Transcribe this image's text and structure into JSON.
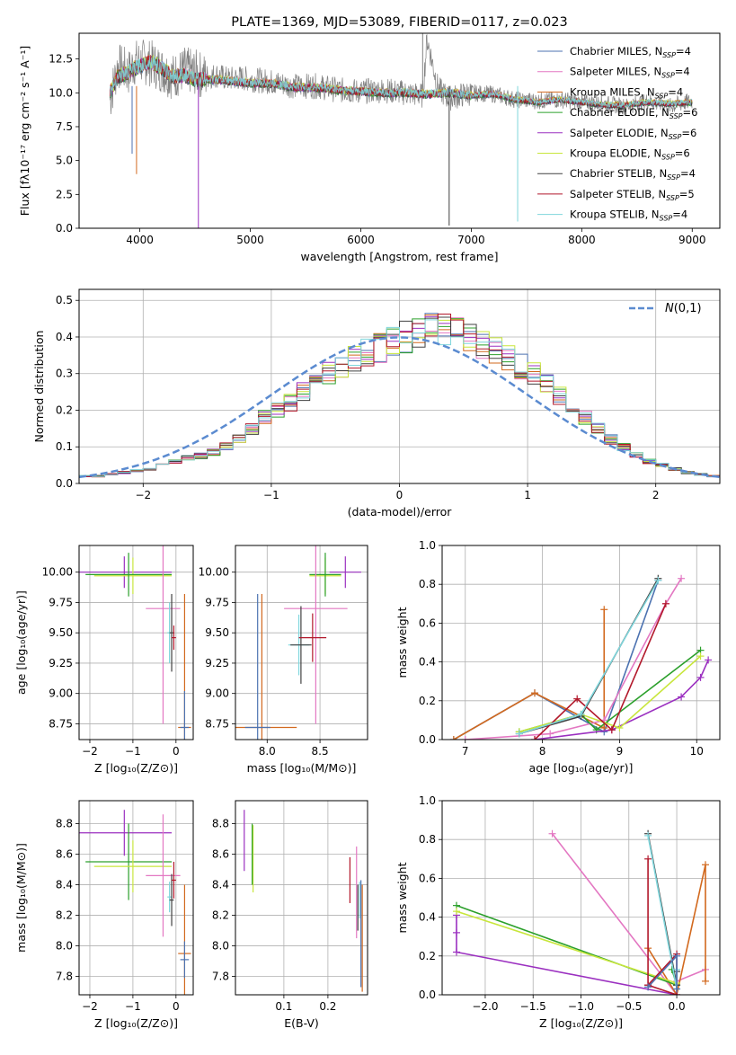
{
  "chart_data": [
    {
      "id": "spectrum",
      "type": "line",
      "title": "PLATE=1369, MJD=53089, FIBERID=0117, z=0.023",
      "xlabel": "wavelength [Angstrom, rest frame]",
      "ylabel": "Flux [fλ10⁻¹⁷ erg cm⁻² s⁻¹ A⁻¹]",
      "xlim": [
        3450,
        9250
      ],
      "ylim": [
        0,
        14.4
      ],
      "xticks": [
        4000,
        5000,
        6000,
        7000,
        8000,
        9000
      ],
      "yticks": [
        0.0,
        2.5,
        5.0,
        7.5,
        10.0,
        12.5
      ],
      "grid": false,
      "legend_position": "top-right",
      "data_series": {
        "name": "data",
        "color": "#808080",
        "x": [
          3730,
          3800,
          3900,
          3950,
          4000,
          4100,
          4200,
          4300,
          4400,
          4500,
          4600,
          4700,
          4800,
          4900,
          5000,
          5200,
          5400,
          5600,
          5800,
          6000,
          6200,
          6400,
          6560,
          6600,
          6700,
          6800,
          7000,
          7200,
          7400,
          7600,
          7800,
          8000,
          8200,
          8400,
          8600,
          8800,
          9000
        ],
        "y": [
          9.5,
          12.0,
          11.5,
          12.2,
          12.3,
          12.2,
          11.7,
          11.2,
          11.7,
          11.5,
          11.2,
          11.3,
          11.0,
          11.1,
          11.0,
          10.8,
          10.5,
          10.5,
          10.2,
          10.1,
          10.2,
          10.0,
          9.8,
          14.0,
          10.3,
          9.6,
          10.0,
          9.9,
          9.5,
          9.4,
          9.5,
          9.3,
          9.2,
          9.0,
          9.4,
          9.0,
          9.4
        ]
      },
      "series": [
        {
          "name": "Chabrier MILES, N_SSP=4",
          "label_main": "Chabrier MILES, N",
          "label_sub": "SSP",
          "label_tail": "=4",
          "color": "#4c72b0"
        },
        {
          "name": "Salpeter MILES, N_SSP=4",
          "label_main": "Salpeter MILES, N",
          "label_sub": "SSP",
          "label_tail": "=4",
          "color": "#e377c2"
        },
        {
          "name": "Kroupa MILES, N_SSP=4",
          "label_main": "Kroupa MILES, N",
          "label_sub": "SSP",
          "label_tail": "=4",
          "color": "#d2691e"
        },
        {
          "name": "Chabrier ELODIE, N_SSP=6",
          "label_main": "Chabrier ELODIE, N",
          "label_sub": "SSP",
          "label_tail": "=6",
          "color": "#2ca02c"
        },
        {
          "name": "Salpeter ELODIE, N_SSP=6",
          "label_main": "Salpeter ELODIE, N",
          "label_sub": "SSP",
          "label_tail": "=6",
          "color": "#9b30c0"
        },
        {
          "name": "Kroupa ELODIE, N_SSP=6",
          "label_main": "Kroupa ELODIE, N",
          "label_sub": "SSP",
          "label_tail": "=6",
          "color": "#c8e63c"
        },
        {
          "name": "Chabrier STELIB, N_SSP=4",
          "label_main": "Chabrier STELIB, N",
          "label_sub": "SSP",
          "label_tail": "=4",
          "color": "#404040"
        },
        {
          "name": "Salpeter STELIB, N_SSP=5",
          "label_main": "Salpeter STELIB, N",
          "label_sub": "SSP",
          "label_tail": "=5",
          "color": "#b2182b"
        },
        {
          "name": "Kroupa STELIB, N_SSP=4",
          "label_main": "Kroupa STELIB, N",
          "label_sub": "SSP",
          "label_tail": "=4",
          "color": "#7fd6dc"
        }
      ],
      "model_curve": {
        "x": [
          3730,
          3800,
          3900,
          4000,
          4100,
          4200,
          4300,
          4400,
          4500,
          4600,
          4800,
          5000,
          5200,
          5400,
          5600,
          5800,
          6000,
          6200,
          6400,
          6600,
          6800,
          7000,
          7200,
          7400,
          7600,
          7800,
          8000,
          8200,
          8400,
          8600,
          8800,
          9000
        ],
        "y": [
          10.0,
          11.2,
          11.5,
          12.0,
          12.3,
          11.8,
          11.2,
          11.3,
          11.0,
          11.0,
          10.9,
          10.7,
          10.7,
          10.4,
          10.4,
          10.2,
          10.1,
          10.0,
          10.0,
          9.9,
          10.0,
          9.8,
          9.9,
          9.5,
          9.3,
          9.5,
          9.3,
          9.1,
          9.1,
          9.3,
          9.2,
          9.3
        ]
      }
    },
    {
      "id": "residuals",
      "type": "line",
      "xlabel": "(data-model)/error",
      "ylabel": "Normed distribution",
      "xlim": [
        -2.5,
        2.5
      ],
      "ylim": [
        0,
        0.53
      ],
      "xticks": [
        -2,
        -1,
        0,
        1,
        2
      ],
      "yticks": [
        0.0,
        0.1,
        0.2,
        0.3,
        0.4,
        0.5
      ],
      "grid": true,
      "legend_position": "top-right",
      "gaussian": {
        "name": "N(0,1)",
        "color": "#5b8bd0"
      },
      "bin_width": 0.1,
      "bin_start": -2.5,
      "histogram_envelope": [
        0.02,
        0.02,
        0.025,
        0.03,
        0.035,
        0.04,
        0.05,
        0.06,
        0.07,
        0.075,
        0.085,
        0.1,
        0.12,
        0.15,
        0.18,
        0.2,
        0.22,
        0.25,
        0.28,
        0.3,
        0.32,
        0.34,
        0.36,
        0.37,
        0.39,
        0.4,
        0.41,
        0.42,
        0.42,
        0.41,
        0.4,
        0.38,
        0.36,
        0.34,
        0.32,
        0.3,
        0.27,
        0.24,
        0.21,
        0.18,
        0.15,
        0.12,
        0.1,
        0.08,
        0.06,
        0.05,
        0.04,
        0.03,
        0.025,
        0.02
      ]
    },
    {
      "id": "age-vs-Z",
      "type": "scatter",
      "xlabel": "Z [log₁₀(Z/Z⊙)]",
      "ylabel": "age  [log₁₀(age/yr)]",
      "xlim": [
        -2.25,
        0.4
      ],
      "ylim": [
        8.62,
        10.22
      ],
      "xticks": [
        -2,
        -1,
        0
      ],
      "yticks": [
        8.75,
        9.0,
        9.25,
        9.5,
        9.75,
        10.0
      ],
      "points": [
        {
          "series": 4,
          "x": -1.2,
          "xerr": 1.1,
          "y": 10.0,
          "yerr": 0.13
        },
        {
          "series": 5,
          "x": -1.0,
          "xerr": 0.9,
          "y": 9.97,
          "yerr": 0.15
        },
        {
          "series": 3,
          "x": -1.1,
          "xerr": 1.0,
          "y": 9.98,
          "yerr": 0.18
        },
        {
          "series": 1,
          "x": -0.3,
          "xerr": 0.4,
          "y": 9.7,
          "yerr": 0.95
        },
        {
          "series": 8,
          "x": -0.15,
          "xerr": 0.05,
          "y": 9.5,
          "yerr": 0.25
        },
        {
          "series": 6,
          "x": -0.1,
          "xerr": 0.05,
          "y": 9.5,
          "yerr": 0.32
        },
        {
          "series": 7,
          "x": -0.05,
          "xerr": 0.05,
          "y": 9.46,
          "yerr": 0.1
        },
        {
          "series": 2,
          "x": 0.2,
          "xerr": 0.15,
          "y": 8.72,
          "yerr": 1.1
        },
        {
          "series": 0,
          "x": 0.2,
          "xerr": 0.1,
          "y": 8.72,
          "yerr": 0.3
        }
      ]
    },
    {
      "id": "age-vs-mass",
      "type": "scatter",
      "xlabel": "mass [log₁₀(M/M⊙)]",
      "ylabel": "",
      "xlim": [
        7.7,
        8.95
      ],
      "ylim": [
        8.62,
        10.22
      ],
      "xticks": [
        8.0,
        8.5
      ],
      "yticks": [
        8.75,
        9.0,
        9.25,
        9.5,
        9.75,
        10.0
      ],
      "points": [
        {
          "series": 4,
          "x": 8.74,
          "xerr": 0.15,
          "y": 10.0,
          "yerr": 0.13
        },
        {
          "series": 5,
          "x": 8.55,
          "xerr": 0.15,
          "y": 9.97,
          "yerr": 0.15
        },
        {
          "series": 3,
          "x": 8.55,
          "xerr": 0.15,
          "y": 9.98,
          "yerr": 0.18
        },
        {
          "series": 1,
          "x": 8.46,
          "xerr": 0.3,
          "y": 9.7,
          "yerr": 0.95
        },
        {
          "series": 8,
          "x": 8.3,
          "xerr": 0.1,
          "y": 9.4,
          "yerr": 0.25
        },
        {
          "series": 6,
          "x": 8.32,
          "xerr": 0.1,
          "y": 9.4,
          "yerr": 0.32
        },
        {
          "series": 7,
          "x": 8.43,
          "xerr": 0.13,
          "y": 9.46,
          "yerr": 0.2
        },
        {
          "series": 2,
          "x": 7.95,
          "xerr": 0.33,
          "y": 8.72,
          "yerr": 1.1
        },
        {
          "series": 0,
          "x": 7.91,
          "xerr": 0.12,
          "y": 8.72,
          "yerr": 1.1
        }
      ]
    },
    {
      "id": "massweight-vs-age",
      "type": "line",
      "xlabel": "age  [log₁₀(age/yr)]",
      "ylabel": "mass weight",
      "xlim": [
        6.7,
        10.3
      ],
      "ylim": [
        0,
        1.0
      ],
      "xticks": [
        7,
        8,
        9,
        10
      ],
      "yticks": [
        0.0,
        0.2,
        0.4,
        0.6,
        0.8,
        1.0
      ],
      "lines": [
        {
          "series": 0,
          "x": [
            6.85,
            7.9,
            8.8,
            9.5
          ],
          "y": [
            0.0,
            0.24,
            0.04,
            0.82
          ]
        },
        {
          "series": 2,
          "x": [
            6.85,
            7.9,
            8.8,
            8.8
          ],
          "y": [
            0.0,
            0.24,
            0.06,
            0.67
          ]
        },
        {
          "series": 1,
          "x": [
            7.0,
            8.1,
            8.8,
            9.6,
            9.8
          ],
          "y": [
            0.0,
            0.03,
            0.1,
            0.7,
            0.83
          ]
        },
        {
          "series": 3,
          "x": [
            7.7,
            8.5,
            8.7,
            10.05
          ],
          "y": [
            0.04,
            0.13,
            0.05,
            0.46
          ]
        },
        {
          "series": 4,
          "x": [
            7.9,
            8.9,
            9.8,
            10.05,
            10.15
          ],
          "y": [
            0.0,
            0.05,
            0.22,
            0.32,
            0.41
          ]
        },
        {
          "series": 5,
          "x": [
            7.7,
            8.5,
            9.0,
            10.05
          ],
          "y": [
            0.04,
            0.13,
            0.06,
            0.43
          ]
        },
        {
          "series": 6,
          "x": [
            7.7,
            8.5,
            9.5
          ],
          "y": [
            0.03,
            0.12,
            0.83
          ]
        },
        {
          "series": 7,
          "x": [
            7.9,
            8.45,
            8.9,
            9.6
          ],
          "y": [
            0.0,
            0.21,
            0.05,
            0.7
          ]
        },
        {
          "series": 8,
          "x": [
            7.7,
            8.5,
            9.5
          ],
          "y": [
            0.03,
            0.13,
            0.82
          ]
        }
      ]
    },
    {
      "id": "mass-vs-Z",
      "type": "scatter",
      "xlabel": "Z [log₁₀(Z/Z⊙)]",
      "ylabel": "mass [log₁₀(M/M⊙)]",
      "xlim": [
        -2.25,
        0.4
      ],
      "ylim": [
        7.68,
        8.95
      ],
      "xticks": [
        -2,
        -1,
        0
      ],
      "yticks": [
        7.8,
        8.0,
        8.2,
        8.4,
        8.6,
        8.8
      ],
      "points": [
        {
          "series": 4,
          "x": -1.2,
          "xerr": 1.1,
          "y": 8.74,
          "yerr": 0.15
        },
        {
          "series": 3,
          "x": -1.1,
          "xerr": 1.0,
          "y": 8.55,
          "yerr": 0.25
        },
        {
          "series": 5,
          "x": -1.0,
          "xerr": 0.9,
          "y": 8.52,
          "yerr": 0.17
        },
        {
          "series": 1,
          "x": -0.3,
          "xerr": 0.4,
          "y": 8.46,
          "yerr": 0.4
        },
        {
          "series": 8,
          "x": -0.15,
          "xerr": 0.05,
          "y": 8.32,
          "yerr": 0.1
        },
        {
          "series": 6,
          "x": -0.1,
          "xerr": 0.05,
          "y": 8.3,
          "yerr": 0.17
        },
        {
          "series": 7,
          "x": -0.05,
          "xerr": 0.05,
          "y": 8.43,
          "yerr": 0.12
        },
        {
          "series": 2,
          "x": 0.2,
          "xerr": 0.15,
          "y": 7.95,
          "yerr": 0.45
        },
        {
          "series": 0,
          "x": 0.2,
          "xerr": 0.1,
          "y": 7.91,
          "yerr": 0.12
        }
      ]
    },
    {
      "id": "mass-vs-EBV",
      "type": "scatter",
      "xlabel": "E(B-V)",
      "ylabel": "",
      "xlim": [
        -0.01,
        0.29
      ],
      "ylim": [
        7.68,
        8.95
      ],
      "xticks": [
        0.1,
        0.2
      ],
      "yticks": [
        7.8,
        8.0,
        8.2,
        8.4,
        8.6,
        8.8
      ],
      "points": [
        {
          "series": 4,
          "x": 0.01,
          "y": 8.69,
          "yerr": 0.2
        },
        {
          "series": 5,
          "x": 0.03,
          "y": 8.57,
          "yerr": 0.22
        },
        {
          "series": 3,
          "x": 0.028,
          "y": 8.6,
          "yerr": 0.2
        },
        {
          "series": 7,
          "x": 0.25,
          "y": 8.43,
          "yerr": 0.15
        },
        {
          "series": 1,
          "x": 0.265,
          "y": 8.35,
          "yerr": 0.3
        },
        {
          "series": 6,
          "x": 0.268,
          "y": 8.25,
          "yerr": 0.15
        },
        {
          "series": 8,
          "x": 0.272,
          "y": 8.3,
          "yerr": 0.12
        },
        {
          "series": 0,
          "x": 0.275,
          "y": 8.08,
          "yerr": 0.35
        },
        {
          "series": 2,
          "x": 0.278,
          "y": 8.05,
          "yerr": 0.35
        }
      ]
    },
    {
      "id": "massweight-vs-Z",
      "type": "line",
      "xlabel": "Z [log₁₀(Z/Z⊙)]",
      "ylabel": "mass weight",
      "xlim": [
        -2.45,
        0.45
      ],
      "ylim": [
        0,
        1.0
      ],
      "xticks": [
        -2.0,
        -1.5,
        -1.0,
        -0.5,
        0.0
      ],
      "yticks": [
        0.0,
        0.2,
        0.4,
        0.6,
        0.8,
        1.0
      ],
      "lines": [
        {
          "series": 1,
          "x": [
            -1.3,
            0.0,
            0.0,
            0.3
          ],
          "y": [
            0.83,
            0.0,
            0.07,
            0.13
          ]
        },
        {
          "series": 2,
          "x": [
            -0.3,
            0.0,
            0.3,
            0.3
          ],
          "y": [
            0.24,
            0.0,
            0.67,
            0.07
          ]
        },
        {
          "series": 3,
          "x": [
            -2.3,
            0.0,
            -0.05
          ],
          "y": [
            0.46,
            0.05,
            0.13
          ]
        },
        {
          "series": 4,
          "x": [
            -2.3,
            -2.3,
            -2.3,
            0.0
          ],
          "y": [
            0.41,
            0.32,
            0.22,
            0.0
          ]
        },
        {
          "series": 5,
          "x": [
            -2.3,
            0.0
          ],
          "y": [
            0.43,
            0.06
          ]
        },
        {
          "series": 6,
          "x": [
            -0.3,
            0.0,
            0.0
          ],
          "y": [
            0.83,
            0.05,
            0.12
          ]
        },
        {
          "series": 7,
          "x": [
            -0.3,
            -0.3,
            0.0,
            0.0,
            -0.3
          ],
          "y": [
            0.7,
            0.05,
            0.21,
            0.0,
            0.05
          ]
        },
        {
          "series": 8,
          "x": [
            -0.3,
            0.0,
            0.0
          ],
          "y": [
            0.82,
            0.03,
            0.13
          ]
        },
        {
          "series": 0,
          "x": [
            -0.3,
            0.0,
            0.0
          ],
          "y": [
            0.04,
            0.2,
            0.03
          ]
        }
      ]
    }
  ]
}
